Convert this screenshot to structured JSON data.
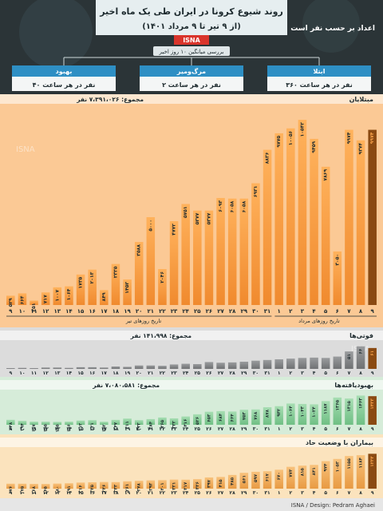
{
  "header": {
    "title": "روند شیوع کرونا در ایران طی یک ماه اخیر",
    "subtitle": "(از ۹ تیر تا ۹ مرداد ۱۴۰۱)",
    "agency": "ISNA",
    "side_label": "اعداد بر حسب نفر است",
    "avg_label": "بررسی میانگین ۱۰ روز اخیر",
    "watermark": "ISNA"
  },
  "summary_boxes": [
    {
      "title": "ابتلا",
      "value": "۳۶۰ نفر در هر ساعت",
      "color": "#2e8fc4"
    },
    {
      "title": "مرگ‌ومیر",
      "value": "۲ نفر در هر ساعت",
      "color": "#2e8fc4"
    },
    {
      "title": "بهبود",
      "value": "۴۰ نفر در هر ساعت",
      "color": "#2e8fc4"
    }
  ],
  "axis": {
    "month1_label": "تاریخ روزهای تیر",
    "month2_label": "تاریخ روزهای مرداد",
    "days": [
      "۹",
      "۱۰",
      "۱۱",
      "۱۲",
      "۱۳",
      "۱۴",
      "۱۵",
      "۱۶",
      "۱۷",
      "۱۸",
      "۱۹",
      "۲۰",
      "۲۱",
      "۲۲",
      "۲۳",
      "۲۴",
      "۲۵",
      "۲۶",
      "۲۷",
      "۲۸",
      "۲۹",
      "۳۰",
      "۳۱",
      "۱",
      "۲",
      "۳",
      "۴",
      "۵",
      "۶",
      "۷",
      "۸",
      "۹"
    ]
  },
  "footer": {
    "credit": "ISNA / Design: Pedram Aghaei"
  },
  "colors": {
    "accent_orange": "#f7a24a",
    "highlight": "#e08a1e",
    "deaths_gray": "#8c8e90",
    "recovered_green": "#8fd19e",
    "severe_orange": "#f2b46a",
    "panel_dark": "#3a4448"
  },
  "chart_data": [
    {
      "type": "bar",
      "title": "مبتلایان",
      "total_label": "مجموع: ۷،۳۹۱،۰۲۶ نفر",
      "categories": [
        "9 Tir",
        "10 Tir",
        "11 Tir",
        "12 Tir",
        "13 Tir",
        "14 Tir",
        "15 Tir",
        "16 Tir",
        "17 Tir",
        "18 Tir",
        "19 Tir",
        "20 Tir",
        "21 Tir",
        "22 Tir",
        "23 Tir",
        "24 Tir",
        "25 Tir",
        "26 Tir",
        "27 Tir",
        "28 Tir",
        "29 Tir",
        "30 Tir",
        "31 Tir",
        "1 Mordad",
        "2 Mordad",
        "3 Mordad",
        "4 Mordad",
        "5 Mordad",
        "6 Mordad",
        "7 Mordad",
        "8 Mordad",
        "9 Mordad"
      ],
      "values": [
        529,
        664,
        251,
        717,
        1007,
        1064,
        1735,
        2013,
        849,
        2335,
        1453,
        3588,
        5000,
        2046,
        4772,
        5751,
        5377,
        5377,
        6093,
        6058,
        6058,
        6931,
        8836,
        9775,
        10056,
        10542,
        9459,
        7869,
        3050,
        9974,
        9374,
        9974
      ],
      "value_labels": [
        "۵۲۹",
        "۶۶۴",
        "۲۵۱",
        "۷۱۷",
        "۱۰۰۷",
        "۱۰۶۴",
        "۱۷۳۵",
        "۲۰۱۳",
        "۸۴۹",
        "۲۳۳۵",
        "۱۴۵۳",
        "۳۵۸۸",
        "۵۰۰۰",
        "۲۰۴۶",
        "۴۷۷۲",
        "۵۷۵۱",
        "۵۳۷۷",
        "۵۳۷۷",
        "۶۰۹۳",
        "۶۰۵۸",
        "۶۰۵۸",
        "۶۹۳۱",
        "۸۸۳۶",
        "۹۷۷۵",
        "۱۰۰۵۶",
        "۱۰۵۴۲",
        "۹۴۵۹",
        "۷۸۶۹",
        "۳۰۵۰",
        "۹۹۷۴",
        "۹۳۷۴",
        "۹۹۷۴"
      ],
      "ylim": [
        0,
        11000
      ]
    },
    {
      "type": "bar",
      "title": "فوتی‌ها",
      "total_label": "مجموع: ۱۴۱،۹۹۸ نفر",
      "categories": [
        "9 Tir",
        "10 Tir",
        "11 Tir",
        "12 Tir",
        "13 Tir",
        "14 Tir",
        "15 Tir",
        "16 Tir",
        "17 Tir",
        "18 Tir",
        "19 Tir",
        "20 Tir",
        "21 Tir",
        "22 Tir",
        "23 Tir",
        "24 Tir",
        "25 Tir",
        "26 Tir",
        "27 Tir",
        "28 Tir",
        "29 Tir",
        "30 Tir",
        "31 Tir",
        "1 Mordad",
        "2 Mordad",
        "3 Mordad",
        "4 Mordad",
        "5 Mordad",
        "6 Mordad",
        "7 Mordad",
        "8 Mordad",
        "9 Mordad"
      ],
      "values": [
        2,
        3,
        2,
        4,
        4,
        3,
        5,
        5,
        4,
        7,
        6,
        10,
        10,
        9,
        13,
        15,
        14,
        20,
        18,
        19,
        21,
        24,
        26,
        28,
        30,
        32,
        33,
        32,
        36,
        51,
        66,
        61
      ],
      "value_labels": [
        "",
        "",
        "",
        "",
        "",
        "",
        "",
        "",
        "",
        "",
        "",
        "",
        "",
        "",
        "",
        "",
        "",
        "",
        "",
        "",
        "",
        "",
        "",
        "",
        "",
        "",
        "",
        "",
        "",
        "۵۱",
        "۶۶",
        "۶۱"
      ],
      "ylim": [
        0,
        70
      ]
    },
    {
      "type": "bar",
      "title": "بهبودیافته‌ها",
      "total_label": "مجموع: ۷،۰۸۰،۵۸۱ نفر",
      "categories": [
        "9 Tir",
        "10 Tir",
        "11 Tir",
        "12 Tir",
        "13 Tir",
        "14 Tir",
        "15 Tir",
        "16 Tir",
        "17 Tir",
        "18 Tir",
        "19 Tir",
        "20 Tir",
        "21 Tir",
        "22 Tir",
        "23 Tir",
        "24 Tir",
        "25 Tir",
        "26 Tir",
        "27 Tir",
        "28 Tir",
        "29 Tir",
        "30 Tir",
        "31 Tir",
        "1 Mordad",
        "2 Mordad",
        "3 Mordad",
        "4 Mordad",
        "5 Mordad",
        "6 Mordad",
        "7 Mordad",
        "8 Mordad",
        "9 Mordad"
      ],
      "values": [
        248,
        194,
        157,
        155,
        145,
        156,
        212,
        231,
        152,
        247,
        311,
        232,
        284,
        365,
        322,
        416,
        526,
        653,
        684,
        664,
        753,
        768,
        878,
        932,
        1064,
        1043,
        1024,
        1187,
        1365,
        1315,
        1463,
        1433
      ],
      "value_labels": [
        "۲۴۸",
        "۱۹۴",
        "۱۵۷",
        "۱۵۵",
        "۱۴۵",
        "۱۵۶",
        "۲۱۲",
        "۲۳۱",
        "۱۵۲",
        "۲۴۷",
        "۳۱۱",
        "۲۳۲",
        "۲۸۴",
        "۳۶۵",
        "۳۲۲",
        "۴۱۶",
        "۵۲۶",
        "۶۵۳",
        "۶۸۴",
        "۶۶۴",
        "۷۵۳",
        "۷۶۸",
        "۸۷۸",
        "۹۳۲",
        "۱۰۶۴",
        "۱۰۴۳",
        "۱۰۲۴",
        "۱۱۸۷",
        "۱۳۶۵",
        "۱۳۱۵",
        "۱۴۶۳",
        "۱۴۳۳"
      ],
      "ylim": [
        0,
        1600
      ]
    },
    {
      "type": "bar",
      "title": "بیماران با وضعیت حاد",
      "total_label": "",
      "categories": [
        "9 Tir",
        "10 Tir",
        "11 Tir",
        "12 Tir",
        "13 Tir",
        "14 Tir",
        "15 Tir",
        "16 Tir",
        "17 Tir",
        "18 Tir",
        "19 Tir",
        "20 Tir",
        "21 Tir",
        "22 Tir",
        "23 Tir",
        "24 Tir",
        "25 Tir",
        "26 Tir",
        "27 Tir",
        "28 Tir",
        "29 Tir",
        "30 Tir",
        "31 Tir",
        "1 Mordad",
        "2 Mordad",
        "3 Mordad",
        "4 Mordad",
        "5 Mordad",
        "6 Mordad",
        "7 Mordad",
        "8 Mordad",
        "9 Mordad"
      ],
      "values": [
        176,
        175,
        168,
        165,
        180,
        191,
        216,
        225,
        236,
        233,
        261,
        278,
        293,
        301,
        321,
        317,
        336,
        397,
        415,
        485,
        561,
        597,
        617,
        670,
        773,
        815,
        841,
        974,
        1052,
        1155,
        1184,
        1234
      ],
      "value_labels": [
        "۱۷۶",
        "۱۷۵",
        "۱۶۸",
        "۱۶۵",
        "۱۸۰",
        "۱۹۱",
        "۲۱۶",
        "۲۲۵",
        "۲۳۶",
        "۲۳۳",
        "۲۶۱",
        "۲۷۸",
        "۲۹۳",
        "۳۰۱",
        "۳۲۱",
        "۳۱۷",
        "۳۳۶",
        "۳۹۷",
        "۴۱۵",
        "۴۸۵",
        "۵۶۱",
        "۵۹۷",
        "۶۱۷",
        "۶۷۰",
        "۷۷۳",
        "۸۱۵",
        "۸۴۱",
        "۹۷۴",
        "۱۰۵۲",
        "۱۱۵۵",
        "۱۱۸۴",
        "۱۲۳۴"
      ],
      "ylim": [
        0,
        1300
      ]
    }
  ]
}
